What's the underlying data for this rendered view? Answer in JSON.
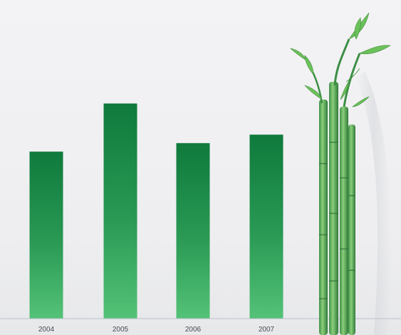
{
  "chart_data": {
    "type": "bar",
    "categories": [
      "2004",
      "2005",
      "2006",
      "2007"
    ],
    "values": [
      5.9,
      7.6,
      6.2,
      6.5
    ],
    "ylim": [
      0,
      10
    ],
    "grid": false,
    "legend": "none",
    "title": "",
    "xlabel": "",
    "ylabel": ""
  },
  "colors": {
    "bar_top": "#0f7a3c",
    "bar_bottom": "#54c277",
    "baseline": "#b7c0c8",
    "background": "#f1f1f3"
  },
  "decoration": {
    "illustration": "bamboo-stalks"
  }
}
